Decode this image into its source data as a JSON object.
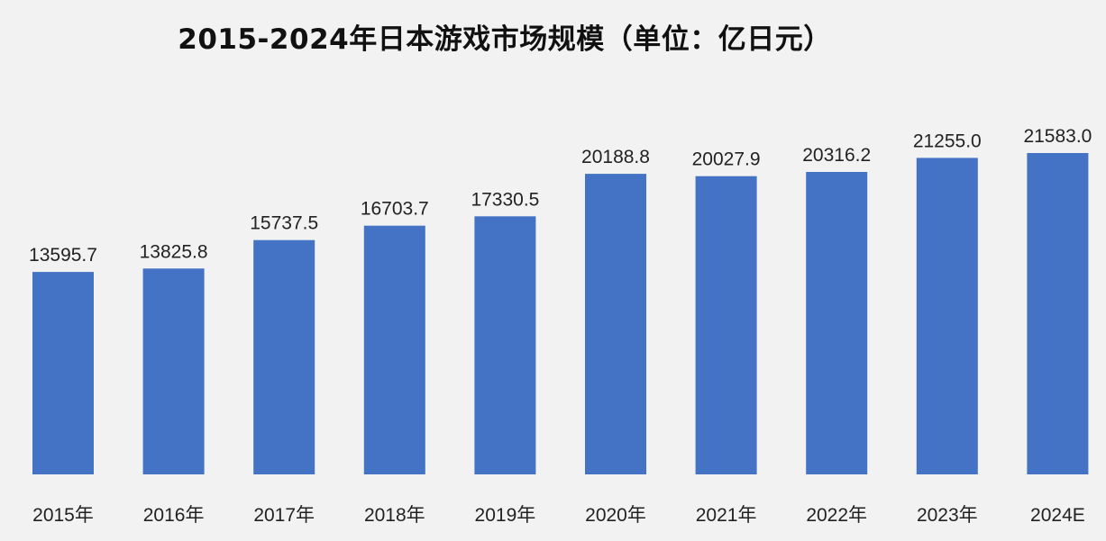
{
  "chart_data": {
    "type": "bar",
    "title": "2015-2024年日本游戏市场规模（单位：亿日元）",
    "xlabel": "",
    "ylabel": "",
    "categories": [
      "2015年",
      "2016年",
      "2017年",
      "2018年",
      "2019年",
      "2020年",
      "2021年",
      "2022年",
      "2023年",
      "2024E"
    ],
    "values": [
      13595.7,
      13825.8,
      15737.5,
      16703.7,
      17330.5,
      20188.8,
      20027.9,
      20316.2,
      21255.0,
      21583.0
    ],
    "value_labels": [
      "13595.7",
      "13825.8",
      "15737.5",
      "16703.7",
      "17330.5",
      "20188.8",
      "20027.9",
      "20316.2",
      "21255.0",
      "21583.0"
    ],
    "ylim": [
      0,
      21583.0
    ],
    "grid": false,
    "legend": "none",
    "bar_color": "#4472c4",
    "background_color": "#f2f2f2"
  }
}
